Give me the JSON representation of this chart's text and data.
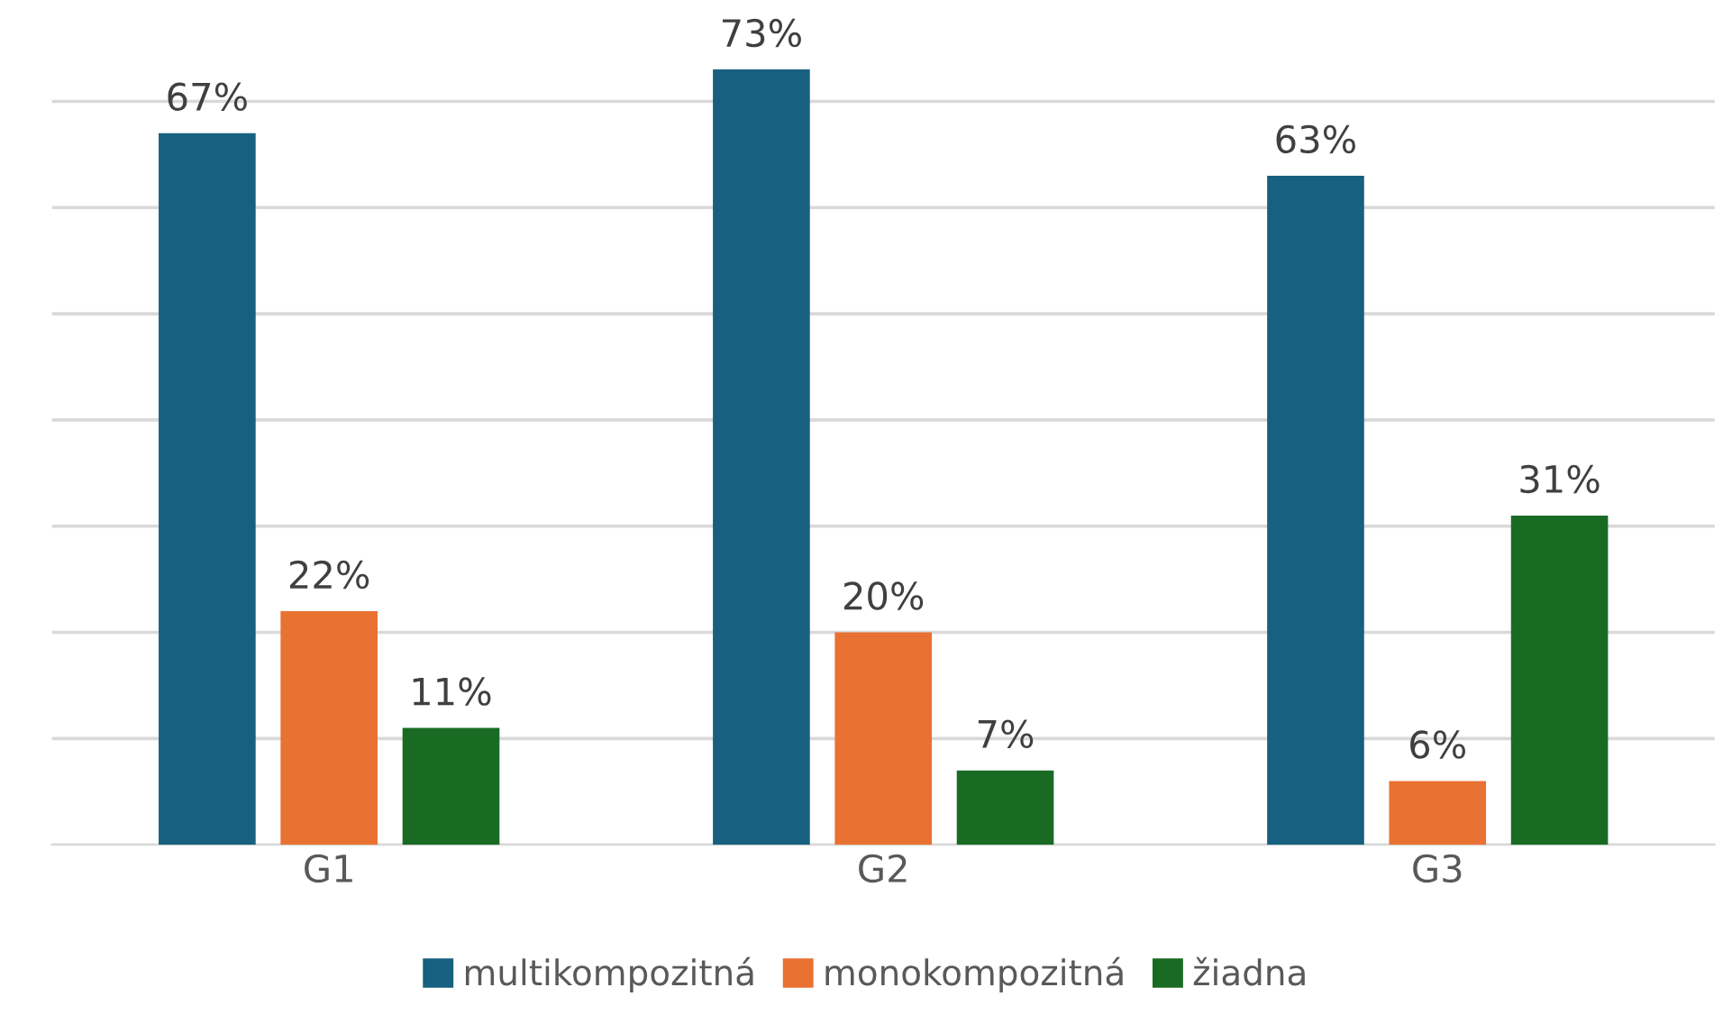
{
  "chart_data": {
    "type": "bar",
    "categories": [
      "G1",
      "G2",
      "G3"
    ],
    "series": [
      {
        "name": "multikompozitná",
        "color": "#17607f",
        "values": [
          67,
          73,
          63
        ],
        "value_labels": [
          "67%",
          "73%",
          "63%"
        ]
      },
      {
        "name": "monokompozitná",
        "color": "#e97132",
        "values": [
          22,
          20,
          6
        ],
        "value_labels": [
          "22%",
          "20%",
          "6%"
        ]
      },
      {
        "name": "žiadna",
        "color": "#196b24",
        "values": [
          11,
          7,
          31
        ],
        "value_labels": [
          "11%",
          "7%",
          "31%"
        ]
      }
    ],
    "tick_labels": "x",
    "grid": "y",
    "legend": "bottom"
  }
}
